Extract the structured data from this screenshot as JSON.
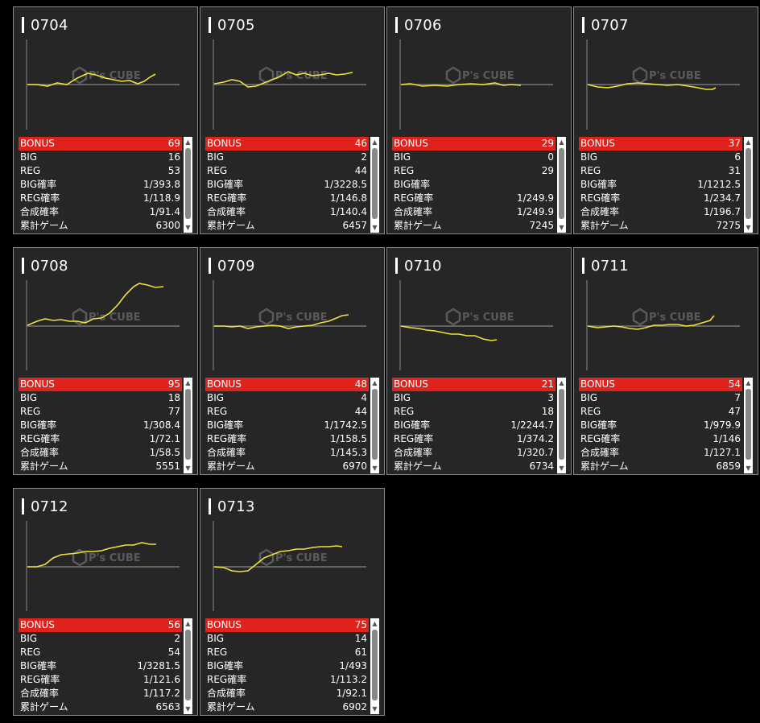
{
  "watermark": {
    "brand": "P's CUBE"
  },
  "labels": {
    "bonus": "BONUS",
    "big": "BIG",
    "reg": "REG",
    "big_rate": "BIG確率",
    "reg_rate": "REG確率",
    "total_rate": "合成確率",
    "games": "累計ゲーム"
  },
  "machines": [
    {
      "id": "0704",
      "bonus": "69",
      "big": "16",
      "reg": "53",
      "big_rate": "1/393.8",
      "reg_rate": "1/118.9",
      "total_rate": "1/91.4",
      "games": "6300"
    },
    {
      "id": "0705",
      "bonus": "46",
      "big": "2",
      "reg": "44",
      "big_rate": "1/3228.5",
      "reg_rate": "1/146.8",
      "total_rate": "1/140.4",
      "games": "6457"
    },
    {
      "id": "0706",
      "bonus": "29",
      "big": "0",
      "reg": "29",
      "big_rate": "",
      "reg_rate": "1/249.9",
      "total_rate": "1/249.9",
      "games": "7245"
    },
    {
      "id": "0707",
      "bonus": "37",
      "big": "6",
      "reg": "31",
      "big_rate": "1/1212.5",
      "reg_rate": "1/234.7",
      "total_rate": "1/196.7",
      "games": "7275"
    },
    {
      "id": "0708",
      "bonus": "95",
      "big": "18",
      "reg": "77",
      "big_rate": "1/308.4",
      "reg_rate": "1/72.1",
      "total_rate": "1/58.5",
      "games": "5551"
    },
    {
      "id": "0709",
      "bonus": "48",
      "big": "4",
      "reg": "44",
      "big_rate": "1/1742.5",
      "reg_rate": "1/158.5",
      "total_rate": "1/145.3",
      "games": "6970"
    },
    {
      "id": "0710",
      "bonus": "21",
      "big": "3",
      "reg": "18",
      "big_rate": "1/2244.7",
      "reg_rate": "1/374.2",
      "total_rate": "1/320.7",
      "games": "6734"
    },
    {
      "id": "0711",
      "bonus": "54",
      "big": "7",
      "reg": "47",
      "big_rate": "1/979.9",
      "reg_rate": "1/146",
      "total_rate": "1/127.1",
      "games": "6859"
    },
    {
      "id": "0712",
      "bonus": "56",
      "big": "2",
      "reg": "54",
      "big_rate": "1/3281.5",
      "reg_rate": "1/121.6",
      "total_rate": "1/117.2",
      "games": "6563"
    },
    {
      "id": "0713",
      "bonus": "75",
      "big": "14",
      "reg": "61",
      "big_rate": "1/493",
      "reg_rate": "1/113.2",
      "total_rate": "1/92.1",
      "games": "6902"
    }
  ],
  "colors": {
    "bonus_bg": "#e0221d",
    "line": "#f0e040",
    "card_bg": "#262626",
    "border": "#8a8a8a"
  }
}
